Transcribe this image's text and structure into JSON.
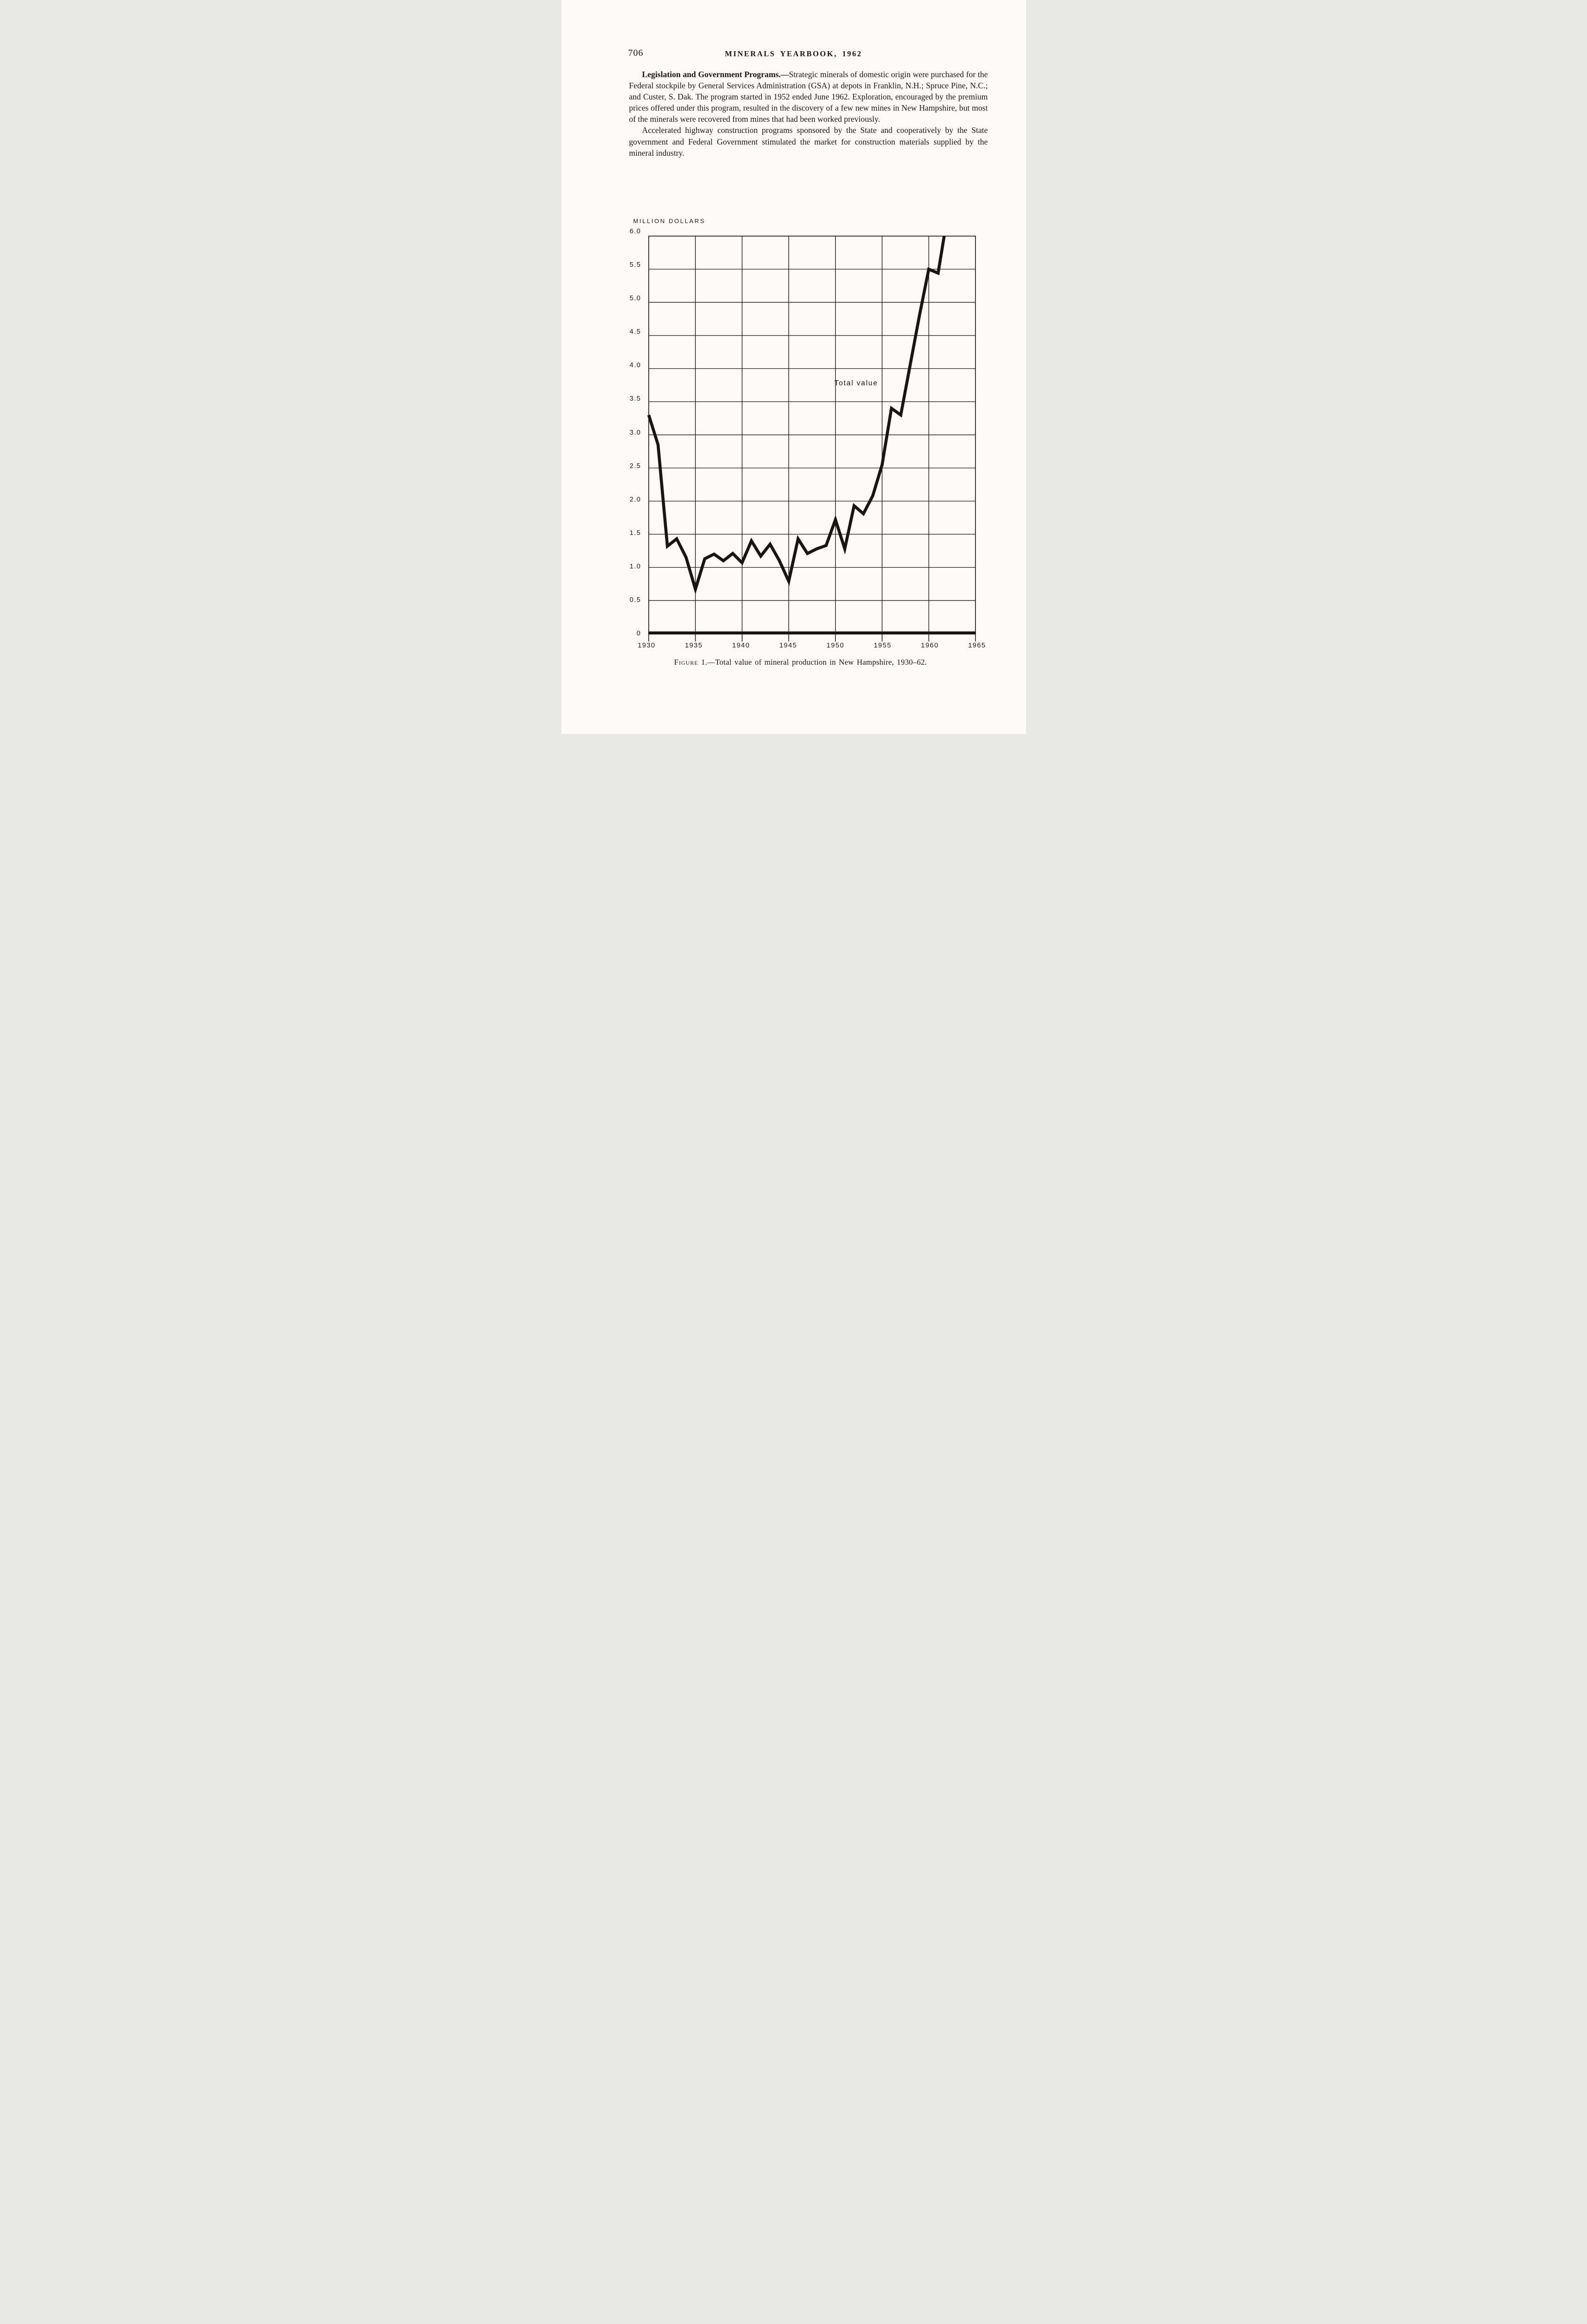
{
  "page": {
    "number": "706",
    "header_title": "MINERALS YEARBOOK, 1962",
    "paragraphs": [
      {
        "lead": "Legislation and Government Programs.—",
        "text": "Strategic minerals of domestic origin were purchased for the Federal stockpile by General Services Administration (GSA) at depots in Franklin, N.H.; Spruce Pine, N.C.; and Custer, S. Dak. The program started in 1952 ended June 1962. Exploration, encouraged by the premium prices offered under this program, resulted in the discovery of a few new mines in New Hampshire, but most of the minerals were recovered from mines that had been worked previously."
      },
      {
        "lead": "",
        "text": "Accelerated highway construction programs sponsored by the State and cooperatively by the State government and Federal Government stimulated the market for construction materials supplied by the mineral industry."
      }
    ],
    "caption": {
      "figure_label": "Figure",
      "rest": " 1.—Total value of mineral production in New Hampshire, 1930–62."
    }
  },
  "chart_data": {
    "type": "line",
    "title": "",
    "axis_label": "MILLION DOLLARS",
    "series_label": "Total value",
    "xlabel": "",
    "ylabel": "MILLION DOLLARS",
    "xlim": [
      1930,
      1965
    ],
    "ylim": [
      0,
      6.0
    ],
    "grid": true,
    "legend_position": "inline-annotation",
    "x_ticks": [
      "1930",
      "1935",
      "1940",
      "1945",
      "1950",
      "1955",
      "1960",
      "1965"
    ],
    "y_ticks": [
      "6.0",
      "5.5",
      "5.0",
      "4.5",
      "4.0",
      "3.5",
      "3.0",
      "2.5",
      "2.0",
      "1.5",
      "1.0",
      "0.5",
      "0"
    ],
    "x": [
      1930,
      1931,
      1932,
      1933,
      1934,
      1935,
      1936,
      1937,
      1938,
      1939,
      1940,
      1941,
      1942,
      1943,
      1944,
      1945,
      1946,
      1947,
      1948,
      1949,
      1950,
      1951,
      1952,
      1953,
      1954,
      1955,
      1956,
      1957,
      1958,
      1959,
      1960,
      1961,
      1962
    ],
    "values": [
      3.3,
      2.85,
      1.32,
      1.43,
      1.15,
      0.67,
      1.13,
      1.2,
      1.1,
      1.21,
      1.07,
      1.4,
      1.17,
      1.35,
      1.1,
      0.79,
      1.43,
      1.21,
      1.28,
      1.33,
      1.72,
      1.28,
      1.93,
      1.81,
      2.08,
      2.55,
      3.4,
      3.3,
      4.05,
      4.8,
      5.5,
      5.44,
      6.3
    ],
    "note": "1962 value rises above the 6.0 top frame and is clipped by it",
    "ink_color": "#181512",
    "paper_color": "#fcfbf8"
  }
}
